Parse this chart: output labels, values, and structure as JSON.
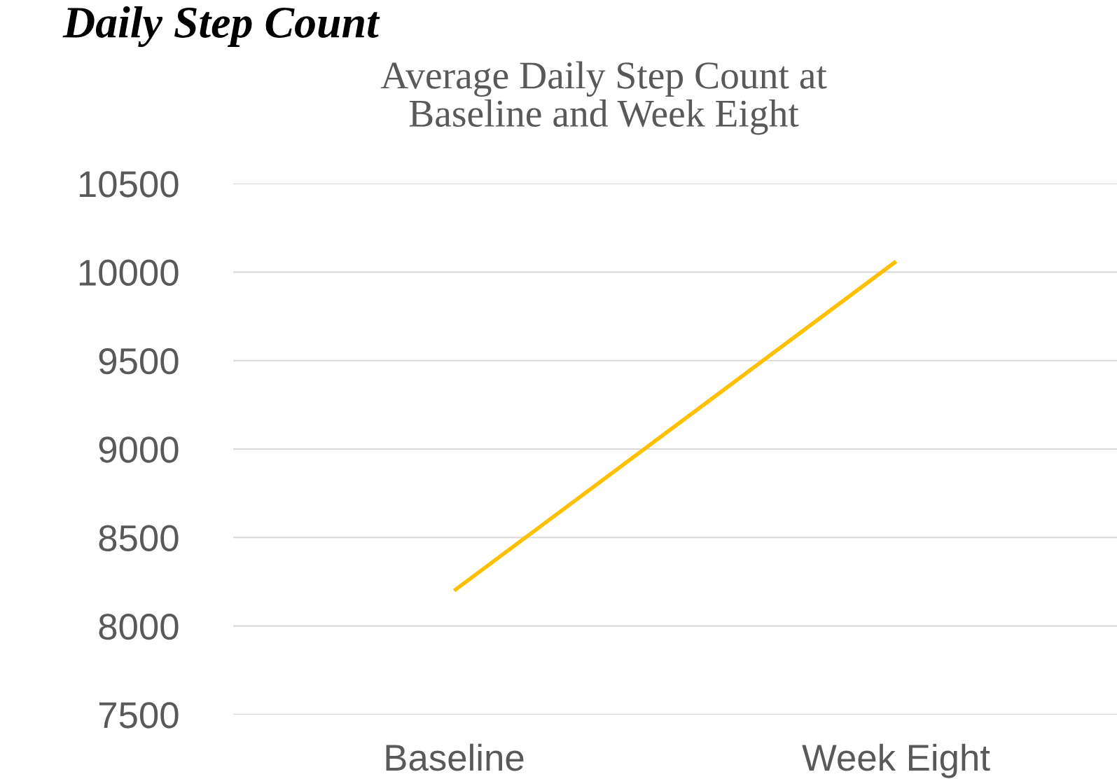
{
  "chart_data": {
    "type": "line",
    "title": "Daily Step Count",
    "subtitle": "Average Daily Step Count at\nBaseline and Week Eight",
    "categories": [
      "Baseline",
      "Week Eight"
    ],
    "series": [
      {
        "color": "#ffc000",
        "values": [
          8200,
          10060
        ]
      }
    ],
    "ylim": [
      7500,
      10500
    ],
    "yticks": [
      7500,
      8000,
      8500,
      9000,
      9500,
      10000,
      10500
    ],
    "grid": "y",
    "marker": "none",
    "line_style": "solid"
  }
}
